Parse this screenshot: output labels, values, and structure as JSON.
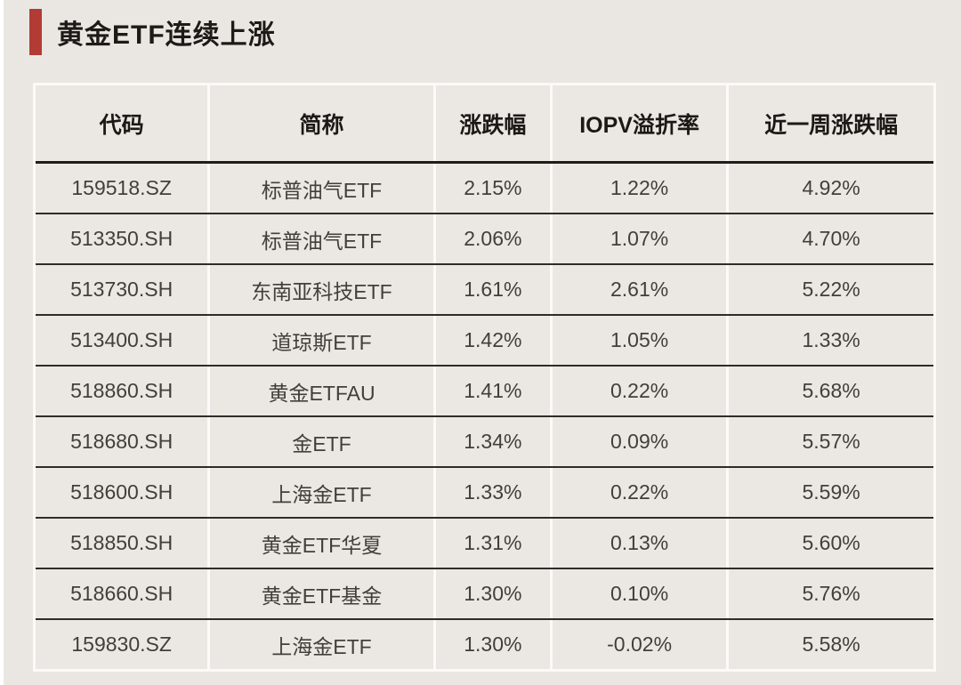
{
  "title": "黄金ETF连续上涨",
  "colors": {
    "accent_bar": "#b23c35",
    "page_background": "#eae7e2",
    "cell_background": "#ebe8e3",
    "row_divider": "#2f2c28",
    "header_divider": "#1f1d1a",
    "header_text": "#1b1916",
    "body_text": "#423f3a"
  },
  "chart_data": {
    "type": "table",
    "title": "黄金ETF连续上涨",
    "columns": [
      "代码",
      "简称",
      "涨跌幅",
      "IOPV溢折率",
      "近一周涨跌幅"
    ],
    "rows": [
      [
        "159518.SZ",
        "标普油气ETF",
        "2.15%",
        "1.22%",
        "4.92%"
      ],
      [
        "513350.SH",
        "标普油气ETF",
        "2.06%",
        "1.07%",
        "4.70%"
      ],
      [
        "513730.SH",
        "东南亚科技ETF",
        "1.61%",
        "2.61%",
        "5.22%"
      ],
      [
        "513400.SH",
        "道琼斯ETF",
        "1.42%",
        "1.05%",
        "1.33%"
      ],
      [
        "518860.SH",
        "黄金ETFAU",
        "1.41%",
        "0.22%",
        "5.68%"
      ],
      [
        "518680.SH",
        "金ETF",
        "1.34%",
        "0.09%",
        "5.57%"
      ],
      [
        "518600.SH",
        "上海金ETF",
        "1.33%",
        "0.22%",
        "5.59%"
      ],
      [
        "518850.SH",
        "黄金ETF华夏",
        "1.31%",
        "0.13%",
        "5.60%"
      ],
      [
        "518660.SH",
        "黄金ETF基金",
        "1.30%",
        "0.10%",
        "5.76%"
      ],
      [
        "159830.SZ",
        "上海金ETF",
        "1.30%",
        "-0.02%",
        "5.58%"
      ]
    ]
  }
}
